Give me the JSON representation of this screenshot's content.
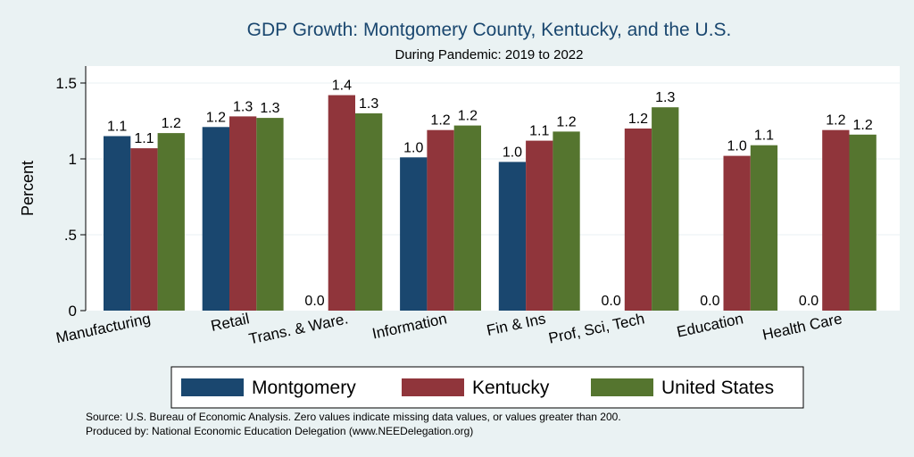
{
  "chart_data": {
    "type": "bar",
    "title": "GDP Growth: Montgomery County, Kentucky, and the U.S.",
    "subtitle": "During Pandemic: 2019 to 2022",
    "ylabel": "Percent",
    "xlabel": "",
    "ylim": [
      0,
      1.6
    ],
    "yticks": [
      {
        "value": 0,
        "label": "0"
      },
      {
        "value": 0.5,
        "label": ".5"
      },
      {
        "value": 1,
        "label": "1"
      },
      {
        "value": 1.5,
        "label": "1.5"
      }
    ],
    "grid": true,
    "legend_position": "bottom",
    "categories": [
      "Manufacturing",
      "Retail",
      "Trans. & Ware.",
      "Information",
      "Fin & Ins",
      "Prof, Sci, Tech",
      "Education",
      "Health Care"
    ],
    "series": [
      {
        "name": "Montgomery",
        "color": "#1a476f",
        "values": [
          1.15,
          1.21,
          0,
          1.01,
          0.98,
          0,
          0,
          0
        ],
        "labels": [
          "1.1",
          "1.2",
          "0.0",
          "1.0",
          "1.0",
          "0.0",
          "0.0",
          "0.0"
        ]
      },
      {
        "name": "Kentucky",
        "color": "#90353b",
        "values": [
          1.07,
          1.28,
          1.42,
          1.19,
          1.12,
          1.2,
          1.02,
          1.19
        ],
        "labels": [
          "1.1",
          "1.3",
          "1.4",
          "1.2",
          "1.1",
          "1.2",
          "1.0",
          "1.2"
        ]
      },
      {
        "name": "United States",
        "color": "#55752f",
        "values": [
          1.17,
          1.27,
          1.3,
          1.22,
          1.18,
          1.34,
          1.09,
          1.16
        ],
        "labels": [
          "1.2",
          "1.3",
          "1.3",
          "1.2",
          "1.2",
          "1.3",
          "1.1",
          "1.2"
        ]
      }
    ]
  },
  "notes": {
    "source": "Source: U.S. Bureau of Economic Analysis. Zero values indicate missing data values, or values greater than 200.",
    "produced_by": "Produced by: National Economic Education Delegation (www.NEEDelegation.org)"
  }
}
